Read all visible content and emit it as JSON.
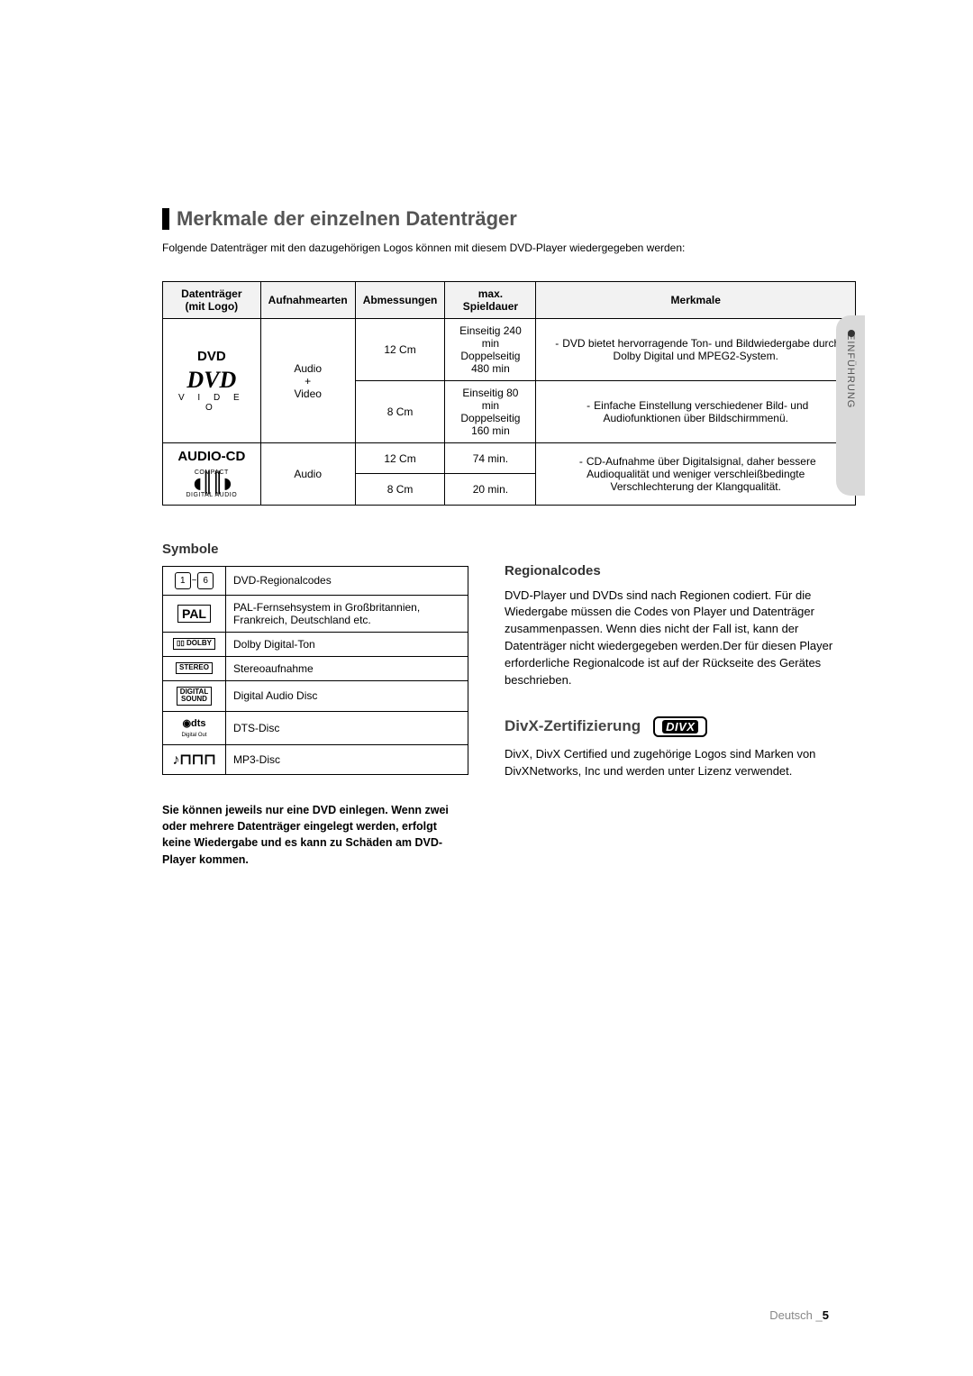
{
  "sideTab": "EINFÜHRUNG",
  "section": {
    "title": "Merkmale der einzelnen Datenträger",
    "intro": "Folgende Datenträger mit den dazugehörigen Logos können mit diesem DVD-Player wiedergegeben werden:"
  },
  "table": {
    "headers": [
      "Datenträger (mit Logo)",
      "Aufnahmearten",
      "Abmessungen",
      "max. Spieldauer",
      "Merkmale"
    ],
    "dvd": {
      "title": "DVD",
      "logoText": "DVD",
      "logoSub": "V I D E O",
      "rec": "Audio\n+\nVideo",
      "rows": [
        {
          "size": "12 Cm",
          "dur": "Einseitig 240 min\nDoppelseitig 480 min",
          "feat": "DVD bietet hervorragende Ton- und Bildwiedergabe durch Dolby Digital und MPEG2-System."
        },
        {
          "size": "8 Cm",
          "dur": "Einseitig 80 min\nDoppelseitig 160 min",
          "feat": "Einfache Einstellung verschiedener Bild- und Audiofunktionen über Bildschirmmenü."
        }
      ]
    },
    "cd": {
      "title": "AUDIO-CD",
      "logoTop": "COMPACT",
      "logoBottom": "DIGITAL AUDIO",
      "rec": "Audio",
      "rows": [
        {
          "size": "12 Cm",
          "dur": "74 min."
        },
        {
          "size": "8 Cm",
          "dur": "20 min."
        }
      ],
      "feat": "CD-Aufnahme über Digitalsignal, daher bessere Audioqualität und weniger verschleißbedingte Verschlechterung der Klangqualität."
    }
  },
  "symbols": {
    "head": "Symbole",
    "rows": [
      {
        "icon": "region",
        "text": "DVD-Regionalcodes"
      },
      {
        "icon": "pal",
        "label": "PAL",
        "text": "PAL-Fernsehsystem in Großbritannien, Frankreich, Deutschland etc."
      },
      {
        "icon": "dolby",
        "label": "DOLBY",
        "text": "Dolby Digital-Ton"
      },
      {
        "icon": "stereo",
        "label": "STEREO",
        "text": "Stereoaufnahme"
      },
      {
        "icon": "digsnd",
        "label1": "DIGITAL",
        "label2": "SOUND",
        "text": "Digital Audio Disc"
      },
      {
        "icon": "dts",
        "label": "dts",
        "sub": "Digital Out",
        "text": "DTS-Disc"
      },
      {
        "icon": "mp3",
        "text": "MP3-Disc"
      }
    ],
    "warning": "Sie können jeweils nur eine DVD einlegen. Wenn zwei oder mehrere Datenträger eingelegt werden, erfolgt keine Wiedergabe und es kann zu Schäden am DVD-Player kommen."
  },
  "region": {
    "head": "Regionalcodes",
    "body": "DVD-Player und DVDs sind nach Regionen codiert. Für die Wiedergabe müssen die Codes von Player und Datenträger zusammenpassen. Wenn dies nicht der Fall ist, kann der Datenträger nicht wiedergegeben werden.Der für diesen Player erforderliche Regionalcode ist auf der Rückseite des Gerätes beschrieben."
  },
  "divx": {
    "head": "DivX-Zertifizierung",
    "logo": "DIVX",
    "body": "DivX, DivX Certified und zugehörige Logos sind Marken von DivXNetworks, Inc und werden unter Lizenz verwendet."
  },
  "footer": {
    "lang": "Deutsch _",
    "page": "5"
  }
}
